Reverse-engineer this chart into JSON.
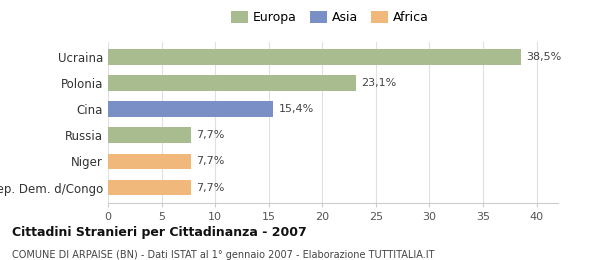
{
  "categories": [
    "Rep. Dem. d/Congo",
    "Niger",
    "Russia",
    "Cina",
    "Polonia",
    "Ucraina"
  ],
  "values": [
    7.7,
    7.7,
    7.7,
    15.4,
    23.1,
    38.5
  ],
  "bar_colors": [
    "#f0b87a",
    "#f0b87a",
    "#a8bc8f",
    "#7b8fc7",
    "#a8bc8f",
    "#a8bc8f"
  ],
  "labels": [
    "7,7%",
    "7,7%",
    "7,7%",
    "15,4%",
    "23,1%",
    "38,5%"
  ],
  "legend": [
    {
      "label": "Europa",
      "color": "#a8bc8f"
    },
    {
      "label": "Asia",
      "color": "#7b8fc7"
    },
    {
      "label": "Africa",
      "color": "#f0b87a"
    }
  ],
  "title": "Cittadini Stranieri per Cittadinanza - 2007",
  "subtitle": "COMUNE DI ARPAISE (BN) - Dati ISTAT al 1° gennaio 2007 - Elaborazione TUTTITALIA.IT",
  "xlim": [
    0,
    42
  ],
  "xticks": [
    0,
    5,
    10,
    15,
    20,
    25,
    30,
    35,
    40
  ],
  "background_color": "#ffffff",
  "grid_color": "#e0e0e0"
}
